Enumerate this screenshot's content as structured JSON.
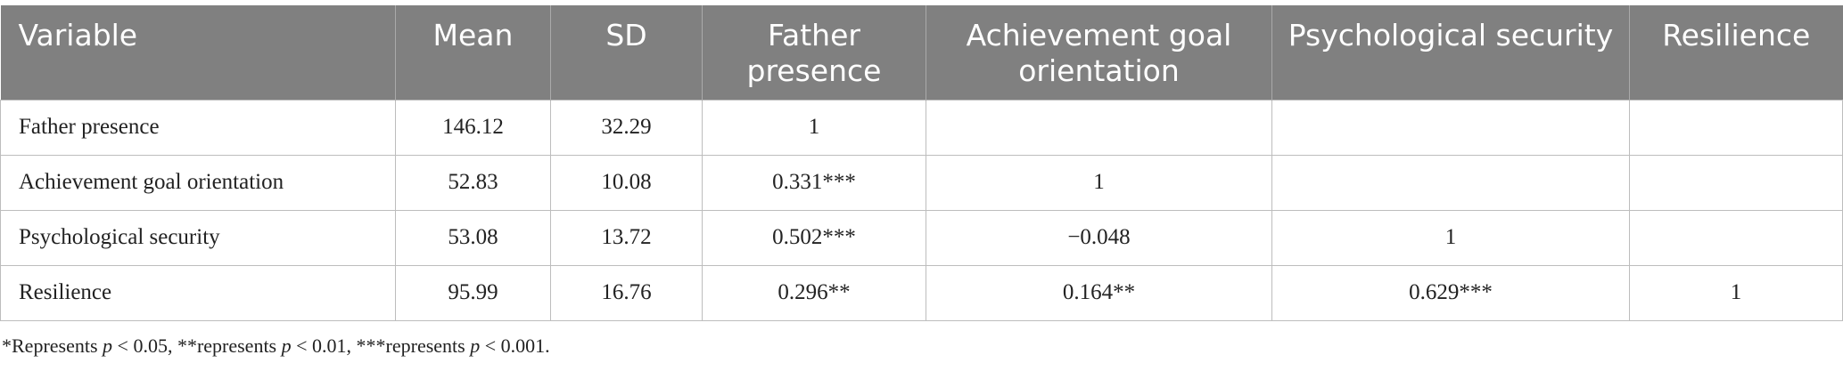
{
  "table": {
    "header": [
      "Variable",
      "Mean",
      "SD",
      "Father presence",
      "Achievement goal orientation",
      "Psychological security",
      "Resilience"
    ],
    "rows": [
      [
        "Father presence",
        "146.12",
        "32.29",
        "1"
      ],
      [
        "Achievement goal orientation",
        "52.83",
        "10.08",
        "0.331***",
        "1"
      ],
      [
        "Psychological security",
        "53.08",
        "13.72",
        "0.502***",
        "−0.048",
        "1"
      ],
      [
        "Resilience",
        "95.99",
        "16.76",
        "0.296**",
        "0.164**",
        "0.629***",
        "1"
      ]
    ]
  },
  "footnote": [
    "*Represents ",
    "p",
    " < 0.05, **represents ",
    "p",
    " < 0.01, ***represents ",
    "p",
    " < 0.001."
  ]
}
